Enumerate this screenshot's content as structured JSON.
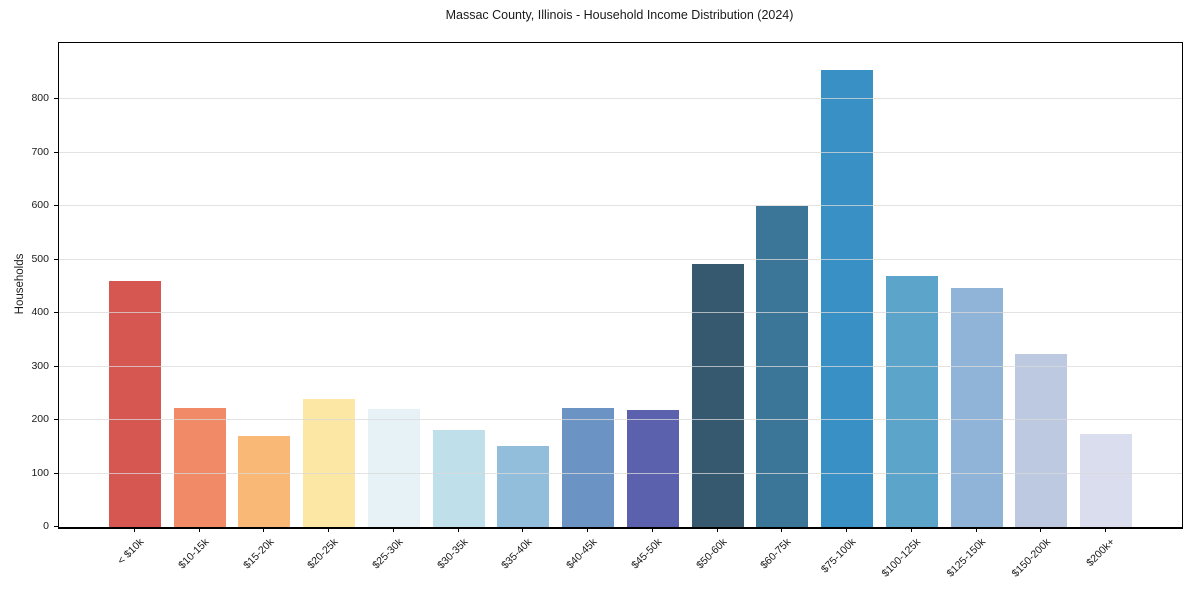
{
  "chart_data": {
    "type": "bar",
    "title": "Massac County, Illinois - Household Income Distribution (2024)",
    "xlabel": "",
    "ylabel": "Households",
    "categories": [
      "< $10k",
      "$10-15k",
      "$15-20k",
      "$20-25k",
      "$25-30k",
      "$30-35k",
      "$35-40k",
      "$40-45k",
      "$45-50k",
      "$50-60k",
      "$60-75k",
      "$75-100k",
      "$100-125k",
      "$125-150k",
      "$150-200k",
      "$200k+"
    ],
    "values": [
      460,
      222,
      170,
      240,
      221,
      182,
      151,
      222,
      218,
      492,
      600,
      855,
      470,
      446,
      324,
      173
    ],
    "bar_colors": [
      "#d65652",
      "#f08a67",
      "#fab877",
      "#fce8a4",
      "#e6f2f5",
      "#bfe0ea",
      "#93bedb",
      "#6b93c4",
      "#5c61ad",
      "#36596f",
      "#3b7598",
      "#3990c5",
      "#5ca4ca",
      "#90b4d8",
      "#bdc9e1",
      "#dadded"
    ],
    "ylim": [
      0,
      905
    ],
    "yticks": [
      0,
      100,
      200,
      300,
      400,
      500,
      600,
      700,
      800
    ],
    "grid": "horizontal",
    "legend": "none",
    "background_color": "#ffffff",
    "spine_color": "#000000"
  }
}
